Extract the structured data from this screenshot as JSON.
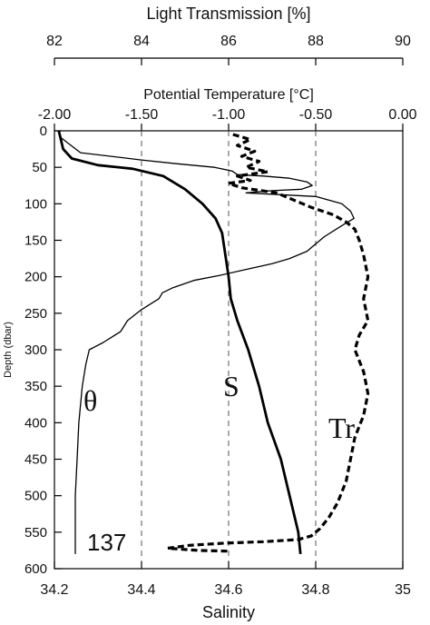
{
  "chart_data": {
    "type": "line",
    "station": "137",
    "axes": {
      "light": {
        "label": "Light Transmission [%]",
        "ticks": [
          "82",
          "84",
          "86",
          "88",
          "90"
        ],
        "range": [
          82,
          90
        ]
      },
      "temp": {
        "label": "Potential Temperature [°C]",
        "ticks": [
          "-2.00",
          "-1.50",
          "-1.00",
          "-0.50",
          "0.00"
        ],
        "range": [
          -2.0,
          0.0
        ]
      },
      "salinity": {
        "label": "Salinity",
        "ticks": [
          "34.2",
          "34.4",
          "34.6",
          "34.8",
          "35"
        ],
        "range": [
          34.2,
          35.0
        ]
      },
      "depth": {
        "label": "Depth (dbar)",
        "ticks": [
          "0",
          "50",
          "100",
          "150",
          "200",
          "250",
          "300",
          "350",
          "400",
          "450",
          "500",
          "550",
          "600"
        ],
        "range": [
          0,
          600
        ],
        "inverted": true
      }
    },
    "grid": "dashed vertical lines at 34.4, 34.6, 34.8",
    "series": [
      {
        "name": "θ",
        "axis": "temp",
        "style": "thin-solid",
        "points": [
          [
            -1.98,
            0
          ],
          [
            -1.96,
            10
          ],
          [
            -1.85,
            30
          ],
          [
            -1.5,
            40
          ],
          [
            -1.3,
            45
          ],
          [
            -1.08,
            50
          ],
          [
            -0.98,
            55
          ],
          [
            -0.95,
            60
          ],
          [
            -0.8,
            62
          ],
          [
            -0.65,
            65
          ],
          [
            -0.55,
            70
          ],
          [
            -0.52,
            75
          ],
          [
            -0.58,
            80
          ],
          [
            -0.75,
            82
          ],
          [
            -0.9,
            85
          ],
          [
            -0.5,
            90
          ],
          [
            -0.35,
            100
          ],
          [
            -0.3,
            110
          ],
          [
            -0.28,
            120
          ],
          [
            -0.35,
            130
          ],
          [
            -0.45,
            145
          ],
          [
            -0.5,
            155
          ],
          [
            -0.55,
            165
          ],
          [
            -0.65,
            175
          ],
          [
            -0.75,
            182
          ],
          [
            -0.9,
            190
          ],
          [
            -1.05,
            198
          ],
          [
            -1.2,
            205
          ],
          [
            -1.32,
            215
          ],
          [
            -1.38,
            222
          ],
          [
            -1.4,
            230
          ],
          [
            -1.5,
            245
          ],
          [
            -1.58,
            260
          ],
          [
            -1.62,
            275
          ],
          [
            -1.72,
            290
          ],
          [
            -1.8,
            300
          ],
          [
            -1.82,
            320
          ],
          [
            -1.84,
            350
          ],
          [
            -1.86,
            400
          ],
          [
            -1.87,
            450
          ],
          [
            -1.88,
            500
          ],
          [
            -1.88,
            550
          ],
          [
            -1.88,
            580
          ]
        ]
      },
      {
        "name": "S",
        "axis": "salinity",
        "style": "thick-solid",
        "points": [
          [
            34.21,
            0
          ],
          [
            34.22,
            25
          ],
          [
            34.24,
            38
          ],
          [
            34.3,
            47
          ],
          [
            34.38,
            52
          ],
          [
            34.45,
            62
          ],
          [
            34.5,
            80
          ],
          [
            34.54,
            100
          ],
          [
            34.57,
            120
          ],
          [
            34.585,
            140
          ],
          [
            34.59,
            160
          ],
          [
            34.595,
            180
          ],
          [
            34.6,
            200
          ],
          [
            34.605,
            230
          ],
          [
            34.62,
            260
          ],
          [
            34.645,
            300
          ],
          [
            34.67,
            350
          ],
          [
            34.69,
            400
          ],
          [
            34.72,
            450
          ],
          [
            34.74,
            500
          ],
          [
            34.76,
            550
          ],
          [
            34.765,
            580
          ]
        ]
      },
      {
        "name": "Tr",
        "axis": "light",
        "style": "thick-dashed",
        "points": [
          [
            86.1,
            5
          ],
          [
            86.5,
            12
          ],
          [
            86.2,
            20
          ],
          [
            86.6,
            28
          ],
          [
            86.3,
            35
          ],
          [
            86.7,
            42
          ],
          [
            86.4,
            50
          ],
          [
            86.9,
            56
          ],
          [
            86.2,
            62
          ],
          [
            86.5,
            68
          ],
          [
            86.0,
            72
          ],
          [
            86.3,
            78
          ],
          [
            87.1,
            85
          ],
          [
            87.5,
            95
          ],
          [
            87.9,
            105
          ],
          [
            88.4,
            115
          ],
          [
            88.7,
            125
          ],
          [
            88.9,
            135
          ],
          [
            89.0,
            150
          ],
          [
            89.1,
            170
          ],
          [
            89.2,
            200
          ],
          [
            89.1,
            230
          ],
          [
            89.2,
            260
          ],
          [
            89.0,
            280
          ],
          [
            88.9,
            300
          ],
          [
            89.1,
            330
          ],
          [
            89.2,
            360
          ],
          [
            89.1,
            390
          ],
          [
            88.9,
            420
          ],
          [
            88.8,
            450
          ],
          [
            88.7,
            480
          ],
          [
            88.5,
            510
          ],
          [
            88.3,
            530
          ],
          [
            88.1,
            545
          ],
          [
            87.9,
            555
          ],
          [
            87.6,
            560
          ],
          [
            86.8,
            563
          ],
          [
            85.9,
            565
          ],
          [
            85.1,
            568
          ],
          [
            84.6,
            572
          ],
          [
            85.3,
            575
          ],
          [
            86.0,
            576
          ]
        ]
      }
    ]
  }
}
